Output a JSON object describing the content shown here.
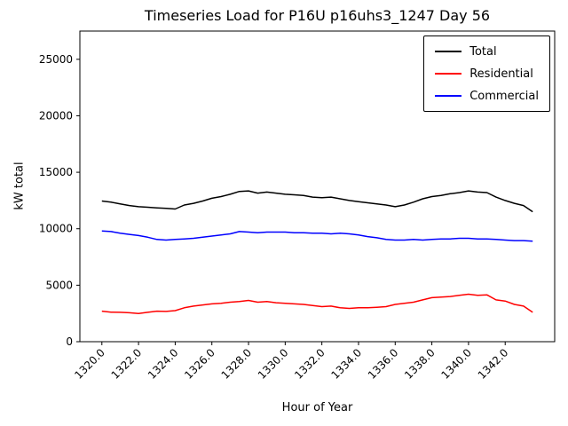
{
  "chart_data": {
    "type": "line",
    "title": "Timeseries Load for P16U p16uhs3_1247  Day 56",
    "xlabel": "Hour of Year",
    "ylabel": "kW total",
    "xlim": [
      1318.8,
      1344.7
    ],
    "ylim": [
      0,
      27500
    ],
    "grid": false,
    "legend_position": "upper right",
    "xticks": [
      1320,
      1322,
      1324,
      1326,
      1328,
      1330,
      1332,
      1334,
      1336,
      1338,
      1340,
      1342
    ],
    "xtick_labels": [
      "1320.0",
      "1322.0",
      "1324.0",
      "1326.0",
      "1328.0",
      "1330.0",
      "1332.0",
      "1334.0",
      "1336.0",
      "1338.0",
      "1340.0",
      "1342.0"
    ],
    "yticks": [
      0,
      5000,
      10000,
      15000,
      20000,
      25000
    ],
    "ytick_labels": [
      "0",
      "5000",
      "10000",
      "15000",
      "20000",
      "25000"
    ],
    "x": [
      1320.0,
      1320.5,
      1321.0,
      1321.5,
      1322.0,
      1322.5,
      1323.0,
      1323.5,
      1324.0,
      1324.5,
      1325.0,
      1325.5,
      1326.0,
      1326.5,
      1327.0,
      1327.5,
      1328.0,
      1328.5,
      1329.0,
      1329.5,
      1330.0,
      1330.5,
      1331.0,
      1331.5,
      1332.0,
      1332.5,
      1333.0,
      1333.5,
      1334.0,
      1334.5,
      1335.0,
      1335.5,
      1336.0,
      1336.5,
      1337.0,
      1337.5,
      1338.0,
      1338.5,
      1339.0,
      1339.5,
      1340.0,
      1340.5,
      1341.0,
      1341.5,
      1342.0,
      1342.5,
      1343.0,
      1343.5
    ],
    "series": [
      {
        "name": "Total",
        "color": "#000000",
        "values": [
          12450,
          12350,
          12200,
          12050,
          11950,
          11900,
          11850,
          11800,
          11750,
          12100,
          12250,
          12450,
          12700,
          12850,
          13050,
          13300,
          13350,
          13150,
          13250,
          13150,
          13050,
          13000,
          12950,
          12800,
          12750,
          12800,
          12650,
          12500,
          12400,
          12300,
          12200,
          12100,
          11950,
          12100,
          12350,
          12650,
          12850,
          12950,
          13100,
          13200,
          13350,
          13250,
          13200,
          12800,
          12500,
          12250,
          12050,
          11500
        ]
      },
      {
        "name": "Residential",
        "color": "#ff0000",
        "values": [
          2700,
          2620,
          2600,
          2560,
          2500,
          2600,
          2700,
          2680,
          2750,
          3000,
          3150,
          3250,
          3350,
          3400,
          3500,
          3550,
          3650,
          3500,
          3550,
          3450,
          3400,
          3350,
          3300,
          3200,
          3100,
          3150,
          3000,
          2950,
          3000,
          3000,
          3050,
          3100,
          3300,
          3400,
          3500,
          3700,
          3900,
          3950,
          4000,
          4100,
          4200,
          4100,
          4150,
          3700,
          3600,
          3300,
          3150,
          2600
        ]
      },
      {
        "name": "Commercial",
        "color": "#0000ff",
        "values": [
          9800,
          9750,
          9600,
          9500,
          9400,
          9250,
          9050,
          9000,
          9050,
          9100,
          9150,
          9250,
          9350,
          9450,
          9550,
          9750,
          9700,
          9650,
          9700,
          9700,
          9700,
          9650,
          9650,
          9600,
          9600,
          9550,
          9600,
          9550,
          9450,
          9300,
          9200,
          9050,
          9000,
          9000,
          9050,
          9000,
          9050,
          9100,
          9100,
          9150,
          9150,
          9100,
          9100,
          9050,
          9000,
          8950,
          8950,
          8900
        ]
      }
    ]
  }
}
